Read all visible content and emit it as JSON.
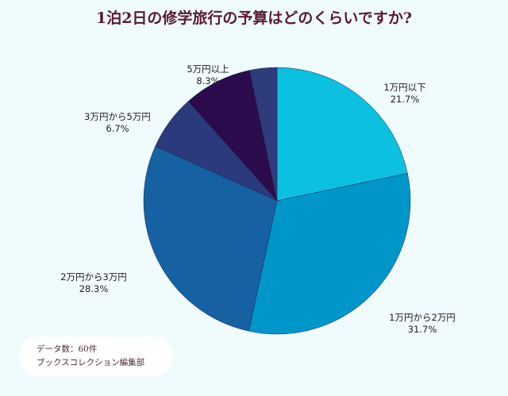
{
  "chart_data": {
    "type": "pie",
    "title": "1泊2日の修学旅行の予算はどのくらいですか?",
    "slices": [
      {
        "label": "1万円以下",
        "value": 21.7,
        "display": "21.7%",
        "color": "#0cc0e0"
      },
      {
        "label": "1万円から2万円",
        "value": 31.7,
        "display": "31.7%",
        "color": "#0096c9"
      },
      {
        "label": "2万円から3万円",
        "value": 28.3,
        "display": "28.3%",
        "color": "#1661a2"
      },
      {
        "label": "3万円から5万円",
        "value": 6.7,
        "display": "6.7%",
        "color": "#2a3a7c"
      },
      {
        "label": "5万円以上",
        "value": 8.3,
        "display": "8.3%",
        "color": "#2b0b4b"
      },
      {
        "label": "",
        "value": 3.3,
        "display": "",
        "color": "#2e3b7c"
      }
    ],
    "start_angle": "12 o'clock",
    "direction": "clockwise"
  },
  "note": {
    "line1": "データ数：60件",
    "line2": "ブックスコレクション編集部"
  }
}
